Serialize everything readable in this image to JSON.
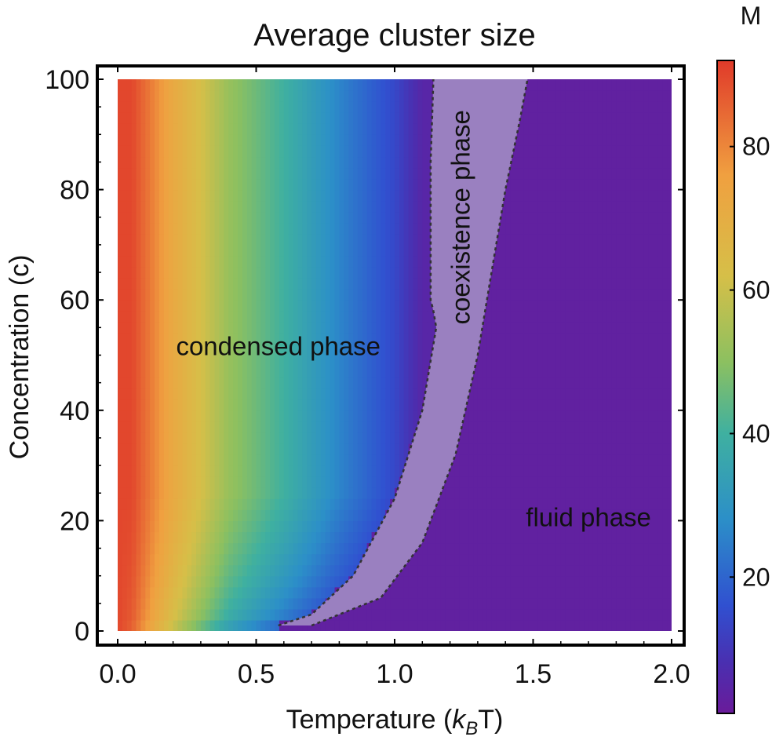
{
  "chart_data": {
    "type": "heatmap",
    "title": "Average cluster size",
    "xlabel": {
      "main": "Temperature (",
      "k": "k",
      "sub": "B",
      "tail": "T)"
    },
    "ylabel": "Concentration (c)",
    "xlim": [
      0,
      2.0
    ],
    "ylim": [
      0,
      100
    ],
    "x_ticks": [
      0.0,
      0.5,
      1.0,
      1.5,
      2.0
    ],
    "x_tick_labels": [
      "0.0",
      "0.5",
      "1.0",
      "1.5",
      "2.0"
    ],
    "y_ticks": [
      0,
      20,
      40,
      60,
      80,
      100
    ],
    "y_tick_labels": [
      "0",
      "20",
      "40",
      "60",
      "80",
      "100"
    ],
    "colorbar": {
      "label": "M",
      "range": [
        1,
        92
      ],
      "ticks": [
        20,
        40,
        60,
        80
      ],
      "tick_labels": [
        "20",
        "40",
        "60",
        "80"
      ],
      "stops": [
        {
          "value": 1,
          "color": "#6a1b9a"
        },
        {
          "value": 8,
          "color": "#4a2fb0"
        },
        {
          "value": 16,
          "color": "#3050d0"
        },
        {
          "value": 28,
          "color": "#2c8fc8"
        },
        {
          "value": 40,
          "color": "#3fb0a0"
        },
        {
          "value": 50,
          "color": "#8cc060"
        },
        {
          "value": 62,
          "color": "#d6bf48"
        },
        {
          "value": 76,
          "color": "#f0a040"
        },
        {
          "value": 92,
          "color": "#e03a2a"
        }
      ]
    },
    "cluster_size_vs_temperature_at_high_c": {
      "temperature": [
        0.05,
        0.2,
        0.4,
        0.6,
        0.8,
        1.0,
        1.1
      ],
      "M": [
        90,
        72,
        52,
        40,
        26,
        14,
        5
      ]
    },
    "fluid_phase_M": 3,
    "coexistence_color": "#9a80c0",
    "boundaries": {
      "condensed_coexistence": {
        "temperature": [
          0.58,
          0.7,
          0.85,
          1.0,
          1.1,
          1.15,
          1.14,
          1.13,
          1.13,
          1.13,
          1.14
        ],
        "concentration": [
          1,
          3,
          10,
          24,
          40,
          55,
          58,
          60,
          70,
          85,
          100
        ]
      },
      "coexistence_fluid": {
        "temperature": [
          0.7,
          0.95,
          1.1,
          1.22,
          1.3,
          1.35,
          1.4,
          1.45,
          1.48
        ],
        "concentration": [
          1,
          6,
          16,
          32,
          50,
          65,
          80,
          92,
          100
        ]
      }
    },
    "annotations": [
      {
        "text": "condensed phase",
        "x": 0.58,
        "y": 50,
        "rotate": 0
      },
      {
        "text": "coexistence phase",
        "x": 1.27,
        "y": 75,
        "rotate": -90
      },
      {
        "text": "fluid phase",
        "x": 1.7,
        "y": 19,
        "rotate": 0
      }
    ]
  }
}
